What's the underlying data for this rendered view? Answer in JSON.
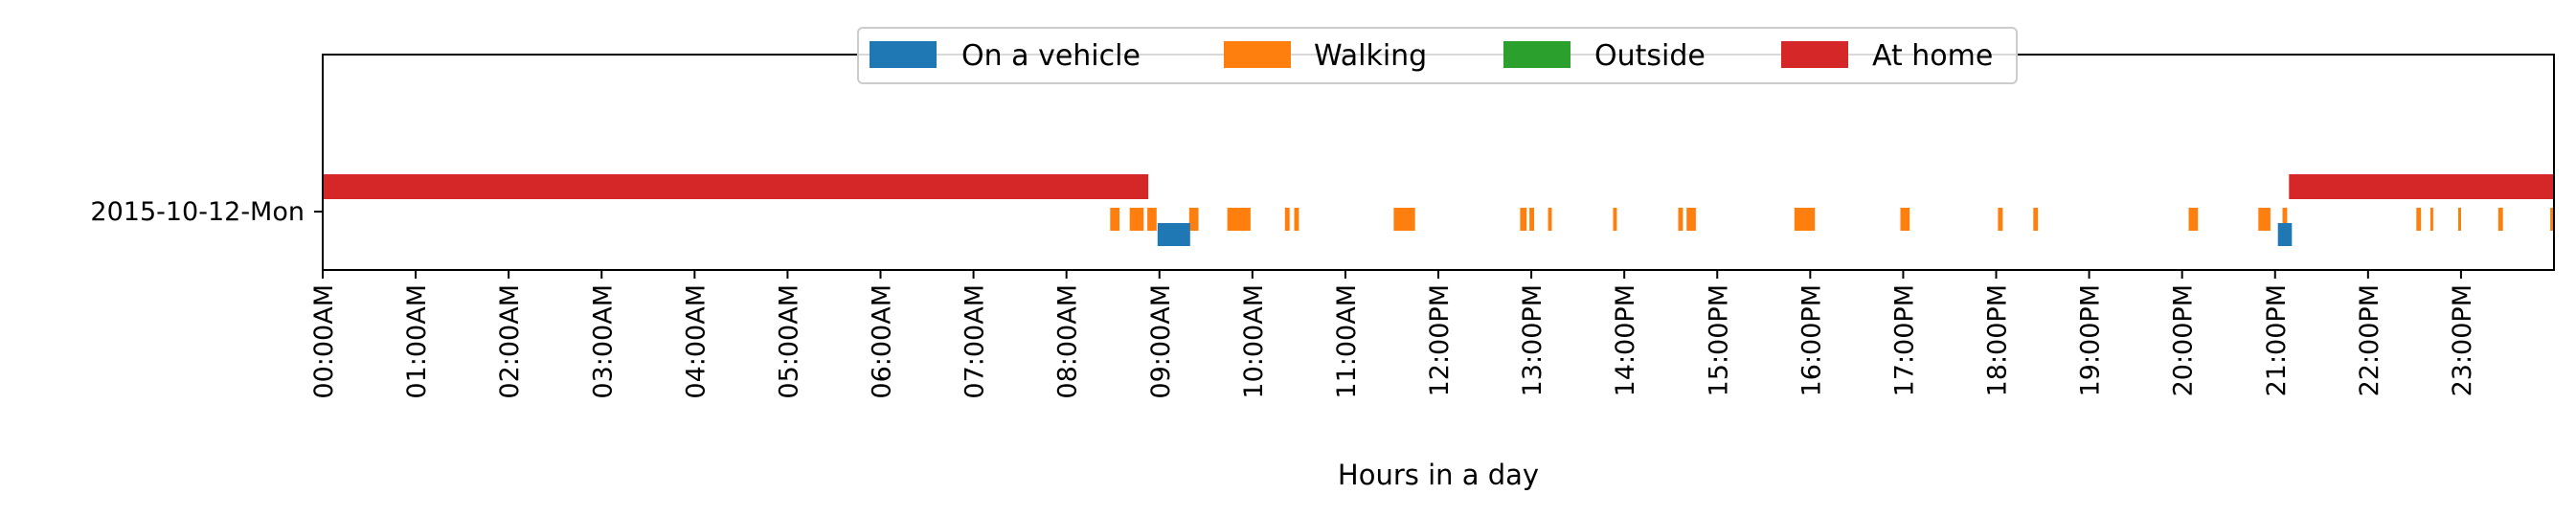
{
  "chart_data": {
    "type": "timeline",
    "xlabel": "Hours in a day",
    "xlim": [
      0,
      24
    ],
    "y_categories": [
      "2015-10-12-Mon"
    ],
    "x_tick_labels": [
      "00:00AM",
      "01:00AM",
      "02:00AM",
      "03:00AM",
      "04:00AM",
      "05:00AM",
      "06:00AM",
      "07:00AM",
      "08:00AM",
      "09:00AM",
      "10:00AM",
      "11:00AM",
      "12:00PM",
      "13:00PM",
      "14:00PM",
      "15:00PM",
      "16:00PM",
      "17:00PM",
      "18:00PM",
      "19:00PM",
      "20:00PM",
      "21:00PM",
      "22:00PM",
      "23:00PM"
    ],
    "legend": {
      "placement": "top-center",
      "entries": [
        {
          "key": "vehicle",
          "label": "On a vehicle",
          "color": "#1f77b4"
        },
        {
          "key": "walking",
          "label": "Walking",
          "color": "#ff7f0e"
        },
        {
          "key": "outside",
          "label": "Outside",
          "color": "#2ca02c"
        },
        {
          "key": "home",
          "label": "At home",
          "color": "#d62728"
        }
      ]
    },
    "series": [
      {
        "name": "At home",
        "key": "home",
        "intervals": [
          [
            0.0,
            8.88
          ],
          [
            21.15,
            24.0
          ]
        ]
      },
      {
        "name": "Walking",
        "key": "walking",
        "intervals": [
          [
            8.47,
            8.57
          ],
          [
            8.68,
            8.83
          ],
          [
            8.87,
            8.97
          ],
          [
            9.32,
            9.42
          ],
          [
            9.73,
            9.98
          ],
          [
            10.35,
            10.4
          ],
          [
            10.45,
            10.5
          ],
          [
            11.52,
            11.75
          ],
          [
            12.88,
            12.95
          ],
          [
            12.98,
            13.03
          ],
          [
            13.18,
            13.22
          ],
          [
            13.88,
            13.92
          ],
          [
            14.58,
            14.63
          ],
          [
            14.67,
            14.77
          ],
          [
            15.83,
            16.05
          ],
          [
            16.97,
            17.07
          ],
          [
            18.02,
            18.07
          ],
          [
            18.4,
            18.45
          ],
          [
            20.07,
            20.17
          ],
          [
            20.82,
            20.95
          ],
          [
            21.08,
            21.13
          ],
          [
            22.52,
            22.57
          ],
          [
            22.67,
            22.7
          ],
          [
            22.97,
            23.0
          ],
          [
            23.4,
            23.45
          ],
          [
            23.96,
            24.0
          ]
        ]
      },
      {
        "name": "On a vehicle",
        "key": "vehicle",
        "intervals": [
          [
            8.98,
            9.33
          ],
          [
            21.03,
            21.18
          ]
        ]
      },
      {
        "name": "Outside",
        "key": "outside",
        "intervals": []
      }
    ]
  }
}
